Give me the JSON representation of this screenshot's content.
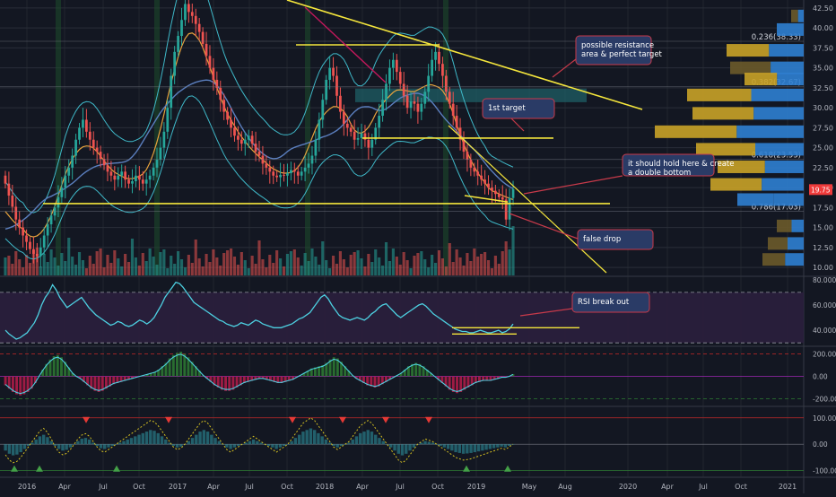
{
  "theme": {
    "background": "#131722",
    "grid": "#2a2e39",
    "up_color": "#26a69a",
    "down_color": "#ef5350",
    "yellow": "#f5e63c",
    "callout_fill": "#2a3b66",
    "callout_border": "#c83a4a",
    "callout_text": "#ffffff",
    "rsi_line": "#4dd0e1",
    "rsi_band": "#2b1f3d",
    "axis_text": "#b2b5be",
    "price_badge": "#ef3b3b",
    "fib_text": "#d1d4dc",
    "vp_gold": "#c9a227",
    "vp_blue": "#2f7fd1",
    "vp_dark": "#6b5a2a"
  },
  "chart_data": [
    {
      "type": "candlestick",
      "name": "main-price-pane",
      "y_axis": {
        "ticks": [
          42.5,
          40.0,
          37.5,
          35.0,
          32.5,
          30.0,
          27.5,
          25.0,
          22.5,
          20.0,
          17.5,
          15.0,
          12.5,
          10.0
        ],
        "tick_labels": [
          "42.50",
          "40.00",
          "37.50",
          "35.00",
          "32.50",
          "30.00",
          "27.50",
          "25.00",
          "22.50",
          "20.00",
          "17.50",
          "15.00",
          "12.50",
          "10.00"
        ],
        "ylim": [
          9,
          43.5
        ]
      },
      "last_price": 19.75,
      "fib_levels": [
        {
          "label": "0.236(38.33)",
          "value": 38.33
        },
        {
          "label": "0.382(32.67)",
          "value": 32.67
        },
        {
          "label": "0.618(23.53)",
          "value": 23.53
        },
        {
          "label": "0.786(17.03)",
          "value": 17.03
        }
      ],
      "annotations": [
        {
          "text_lines": [
            "possible resistance",
            "area & perfect target"
          ]
        },
        {
          "text_lines": [
            "1st target"
          ]
        },
        {
          "text_lines": [
            "it should hold here & create",
            "a double bottom"
          ]
        },
        {
          "text_lines": [
            "false drop"
          ]
        }
      ],
      "weekly_closes": [
        20.5,
        19.0,
        17.6,
        16.0,
        15.0,
        14.0,
        13.2,
        12.3,
        11.7,
        11.4,
        12.5,
        14.0,
        15.4,
        16.5,
        17.5,
        18.8,
        20.0,
        21.5,
        22.5,
        24.0,
        26.0,
        27.5,
        28.5,
        27.0,
        26.0,
        25.0,
        24.5,
        23.6,
        22.8,
        22.0,
        21.5,
        21.0,
        21.5,
        22.0,
        21.0,
        20.5,
        20.8,
        21.5,
        21.0,
        20.5,
        21.0,
        21.5,
        22.5,
        23.5,
        25.0,
        27.0,
        30.0,
        34.0,
        37.0,
        39.0,
        41.0,
        43.0,
        42.0,
        41.5,
        40.5,
        39.5,
        38.0,
        36.5,
        35.0,
        33.5,
        32.5,
        31.0,
        29.5,
        28.5,
        27.5,
        26.5,
        26.0,
        25.5,
        26.0,
        26.5,
        25.5,
        24.5,
        24.0,
        23.0,
        22.5,
        22.0,
        21.5,
        21.3,
        21.6,
        21.5,
        21.8,
        22.2,
        22.0,
        21.5,
        22.0,
        22.5,
        23.0,
        24.0,
        26.0,
        28.5,
        31.0,
        33.5,
        35.0,
        34.0,
        31.5,
        29.5,
        28.0,
        27.5,
        27.0,
        26.0,
        26.2,
        26.8,
        26.0,
        25.0,
        26.0,
        27.5,
        29.0,
        31.0,
        33.0,
        35.0,
        36.0,
        34.5,
        33.0,
        31.5,
        30.0,
        30.8,
        30.5,
        29.5,
        30.5,
        32.0,
        34.0,
        36.0,
        37.0,
        35.5,
        34.0,
        32.0,
        30.5,
        29.0,
        27.5,
        26.0,
        24.5,
        23.5,
        22.5,
        22.0,
        21.5,
        21.0,
        20.5,
        20.0,
        19.6,
        19.2,
        18.8,
        18.5,
        16.0,
        18.7,
        19.8
      ],
      "x_axis": {
        "tick_labels": [
          "2016",
          "Apr",
          "Jul",
          "Oct",
          "2017",
          "Apr",
          "Jul",
          "Oct",
          "2018",
          "Apr",
          "Jul",
          "Oct",
          "2019",
          "May",
          "Aug",
          "2020",
          "Apr",
          "Jul",
          "Oct",
          "2021"
        ]
      }
    },
    {
      "type": "line",
      "name": "rsi-pane",
      "y_axis": {
        "tick_labels": [
          "80.0000",
          "60.0000",
          "40.0000"
        ],
        "ticks": [
          80,
          60,
          40
        ],
        "ylim": [
          28,
          82
        ]
      },
      "bands": [
        70,
        30
      ],
      "annotations": [
        {
          "text_lines": [
            "RSI break out"
          ]
        }
      ],
      "values": [
        40,
        37,
        35,
        33,
        34,
        36,
        38,
        42,
        46,
        52,
        60,
        66,
        70,
        76,
        72,
        66,
        62,
        58,
        60,
        62,
        64,
        66,
        62,
        58,
        55,
        52,
        50,
        48,
        46,
        44,
        45,
        47,
        46,
        44,
        43,
        44,
        46,
        48,
        47,
        45,
        47,
        50,
        55,
        60,
        66,
        70,
        74,
        78,
        77,
        74,
        70,
        66,
        62,
        60,
        58,
        56,
        54,
        52,
        50,
        48,
        47,
        45,
        44,
        43,
        44,
        46,
        45,
        44,
        46,
        48,
        47,
        45,
        44,
        43,
        42,
        42,
        42,
        43,
        44,
        45,
        47,
        49,
        50,
        52,
        54,
        58,
        62,
        66,
        68,
        65,
        60,
        56,
        52,
        50,
        49,
        48,
        49,
        50,
        49,
        48,
        50,
        53,
        55,
        58,
        60,
        61,
        58,
        55,
        52,
        50,
        52,
        54,
        56,
        58,
        60,
        61,
        59,
        56,
        53,
        51,
        49,
        47,
        45,
        43,
        41,
        40,
        39,
        39,
        38,
        38,
        39,
        40,
        39,
        38,
        38,
        39,
        40,
        38,
        39,
        41,
        45
      ]
    },
    {
      "type": "histogram",
      "name": "oscillator-pane",
      "y_axis": {
        "tick_labels": [
          "200.00",
          "0.00",
          "-200.00"
        ],
        "ticks": [
          200,
          0,
          -200
        ],
        "ylim": [
          -260,
          260
        ]
      },
      "values": [
        -80,
        -110,
        -140,
        -160,
        -170,
        -160,
        -140,
        -110,
        -60,
        0,
        60,
        110,
        150,
        180,
        190,
        170,
        130,
        80,
        30,
        0,
        -20,
        -50,
        -80,
        -110,
        -130,
        -140,
        -130,
        -110,
        -90,
        -70,
        -60,
        -50,
        -40,
        -30,
        -20,
        -10,
        0,
        10,
        20,
        30,
        40,
        60,
        90,
        120,
        160,
        190,
        210,
        220,
        200,
        170,
        130,
        90,
        50,
        10,
        -20,
        -50,
        -80,
        -100,
        -120,
        -130,
        -130,
        -120,
        -100,
        -80,
        -60,
        -50,
        -40,
        -30,
        -20,
        -20,
        -30,
        -40,
        -50,
        -60,
        -60,
        -50,
        -40,
        -30,
        -10,
        10,
        30,
        50,
        70,
        80,
        90,
        100,
        120,
        150,
        170,
        160,
        130,
        90,
        50,
        10,
        -20,
        -40,
        -60,
        -80,
        -90,
        -100,
        -90,
        -70,
        -50,
        -30,
        -10,
        10,
        30,
        60,
        90,
        110,
        120,
        110,
        90,
        60,
        30,
        0,
        -30,
        -60,
        -90,
        -120,
        -140,
        -150,
        -140,
        -120,
        -100,
        -80,
        -60,
        -50,
        -40,
        -40,
        -40,
        -30,
        -20,
        -10,
        -10,
        0,
        20
      ]
    },
    {
      "type": "line",
      "name": "momentum-pane",
      "y_axis": {
        "tick_labels": [
          "100.00",
          "0.00",
          "-100.00"
        ],
        "ticks": [
          100,
          0,
          -100
        ],
        "ylim": [
          -125,
          140
        ]
      },
      "values": [
        -40,
        -60,
        -70,
        -65,
        -50,
        -30,
        -10,
        10,
        30,
        50,
        60,
        45,
        20,
        -10,
        -30,
        -40,
        -35,
        -20,
        0,
        20,
        35,
        40,
        30,
        10,
        -10,
        -25,
        -30,
        -20,
        -10,
        0,
        10,
        20,
        30,
        40,
        50,
        60,
        70,
        80,
        90,
        85,
        70,
        50,
        30,
        10,
        -10,
        -20,
        -15,
        0,
        20,
        40,
        60,
        80,
        90,
        80,
        60,
        40,
        20,
        0,
        -20,
        -30,
        -20,
        -10,
        0,
        10,
        20,
        30,
        20,
        10,
        0,
        -10,
        -20,
        -30,
        -20,
        -10,
        0,
        20,
        40,
        60,
        80,
        90,
        100,
        90,
        70,
        50,
        30,
        10,
        -10,
        -20,
        -10,
        0,
        10,
        30,
        50,
        70,
        80,
        90,
        80,
        60,
        40,
        20,
        0,
        -20,
        -40,
        -60,
        -70,
        -60,
        -40,
        -20,
        0,
        10,
        20,
        15,
        10,
        0,
        -10,
        -20,
        -30,
        -40,
        -50,
        -55,
        -60,
        -58,
        -55,
        -50,
        -45,
        -40,
        -35,
        -30,
        -25,
        -20,
        -15,
        -20,
        -10,
        0
      ]
    }
  ]
}
